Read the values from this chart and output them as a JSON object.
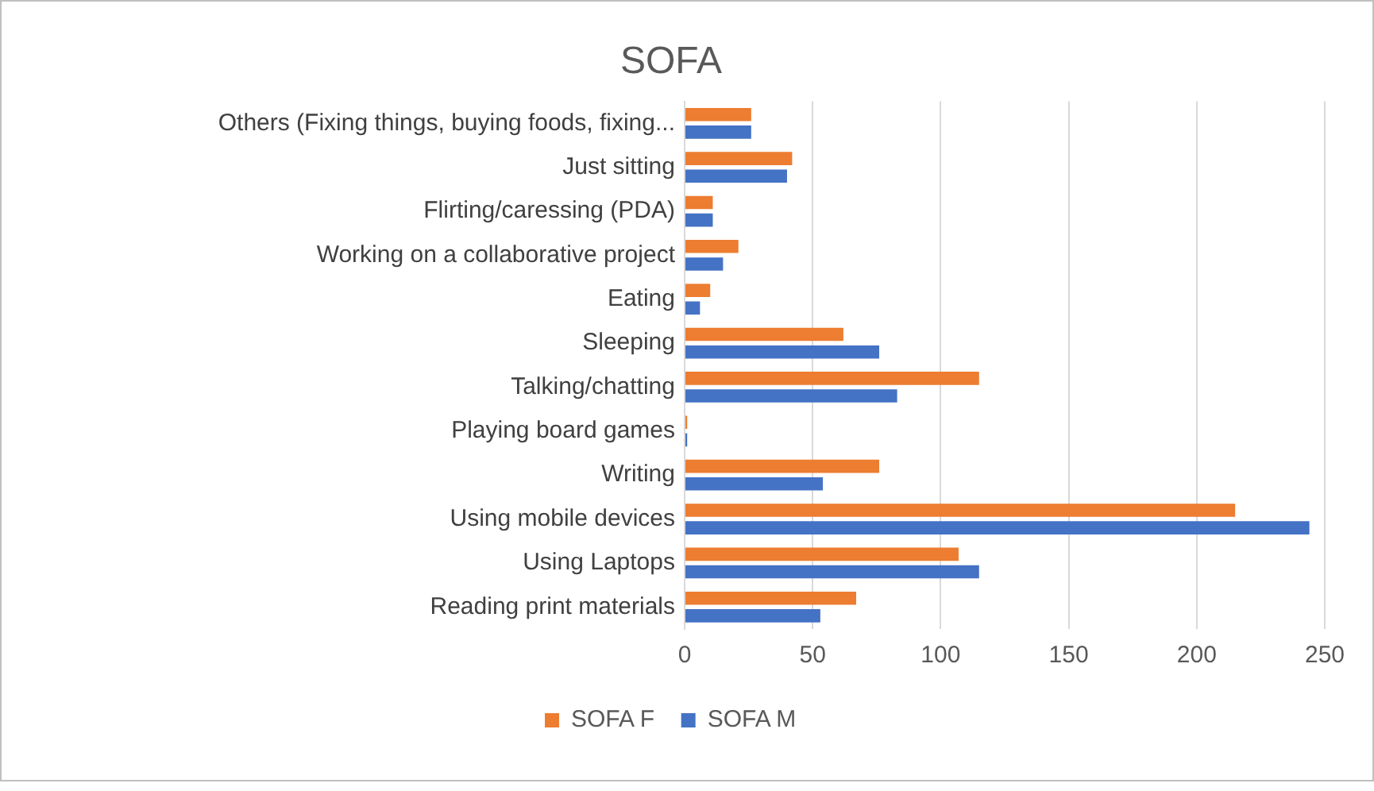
{
  "chart_data": {
    "type": "bar",
    "orientation": "horizontal",
    "title": "SOFA",
    "categories": [
      "Others (Fixing things, buying foods, fixing...",
      "Just sitting",
      "Flirting/caressing (PDA)",
      "Working on a collaborative project",
      "Eating",
      "Sleeping",
      "Talking/chatting",
      "Playing board games",
      "Writing",
      "Using mobile devices",
      "Using Laptops",
      "Reading print materials"
    ],
    "series": [
      {
        "name": "SOFA F",
        "color": "#ed7d31",
        "values": [
          26,
          42,
          11,
          21,
          10,
          62,
          115,
          1,
          76,
          215,
          107,
          67
        ]
      },
      {
        "name": "SOFA M",
        "color": "#4472c4",
        "values": [
          26,
          40,
          11,
          15,
          6,
          76,
          83,
          1,
          54,
          244,
          115,
          53
        ]
      }
    ],
    "xlim": [
      0,
      250
    ],
    "xticks": [
      0,
      50,
      100,
      150,
      200,
      250
    ],
    "grid": "x",
    "legend": "bottom"
  }
}
